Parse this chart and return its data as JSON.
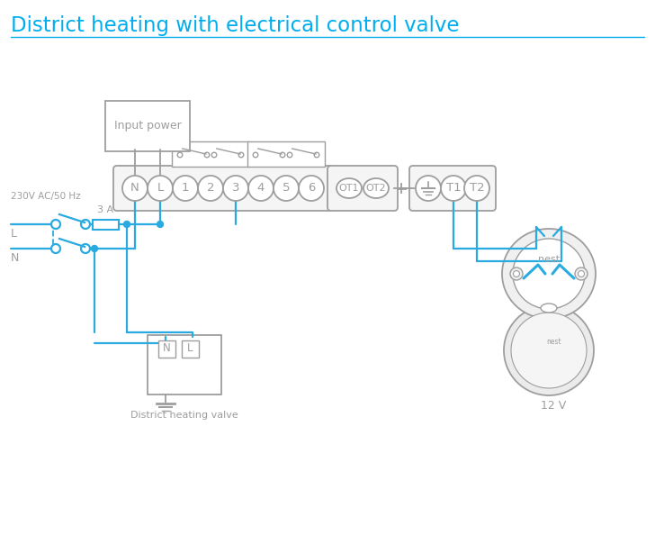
{
  "title": "District heating with electrical control valve",
  "title_color": "#00AEEF",
  "line_color": "#29ABE2",
  "gray": "#9E9E9E",
  "bg": "#FFFFFF",
  "terminal_labels": [
    "N",
    "L",
    "1",
    "2",
    "3",
    "4",
    "5",
    "6"
  ],
  "fuse_label": "3 A",
  "input_power_label": "Input power",
  "valve_label": "District heating valve",
  "nest_label": "12 V",
  "ac_label": "230V AC/50 Hz",
  "L_label": "L",
  "N_label": "N"
}
